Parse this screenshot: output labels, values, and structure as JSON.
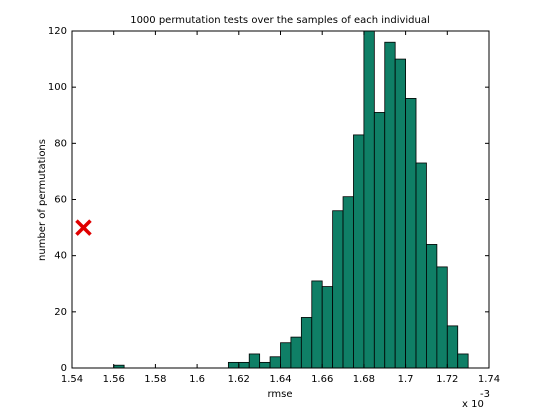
{
  "chart_data": {
    "type": "histogram",
    "title": "1000 permutation tests over the samples of each individual",
    "xlabel": "rmse",
    "ylabel": "number of permutations",
    "x_exponent_base": "x 10",
    "x_exponent": "-3",
    "bins": [
      1.56,
      1.565,
      1.57,
      1.575,
      1.58,
      1.585,
      1.59,
      1.595,
      1.6,
      1.605,
      1.61,
      1.615,
      1.62,
      1.625,
      1.63,
      1.635,
      1.64,
      1.645,
      1.65,
      1.655,
      1.66,
      1.665,
      1.67,
      1.675,
      1.68,
      1.685,
      1.69,
      1.695,
      1.7,
      1.705,
      1.71,
      1.715,
      1.72,
      1.725,
      1.73
    ],
    "values": [
      1,
      0,
      0,
      0,
      0,
      0,
      0,
      0,
      0,
      0,
      0,
      2,
      2,
      5,
      2,
      4,
      9,
      11,
      18,
      31,
      29,
      56,
      61,
      83,
      120,
      91,
      116,
      110,
      96,
      73,
      44,
      36,
      15,
      5
    ],
    "color": "#0f7f66",
    "marker": {
      "x": 1.5455,
      "y": 50,
      "color": "#e00000"
    },
    "xlim": [
      1.54,
      1.74
    ],
    "xticks": [
      1.54,
      1.56,
      1.58,
      1.6,
      1.62,
      1.64,
      1.66,
      1.68,
      1.7,
      1.72,
      1.74
    ],
    "ylim": [
      0,
      120
    ],
    "yticks": [
      0,
      20,
      40,
      60,
      80,
      100,
      120
    ]
  }
}
